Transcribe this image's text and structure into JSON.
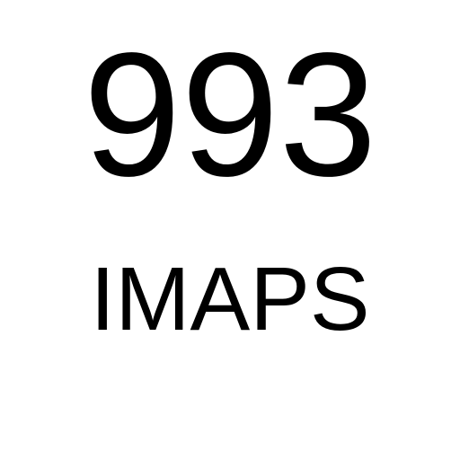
{
  "port": "993",
  "protocol": "IMAPS",
  "colors": {
    "background": "#ffffff",
    "text": "#000000"
  }
}
